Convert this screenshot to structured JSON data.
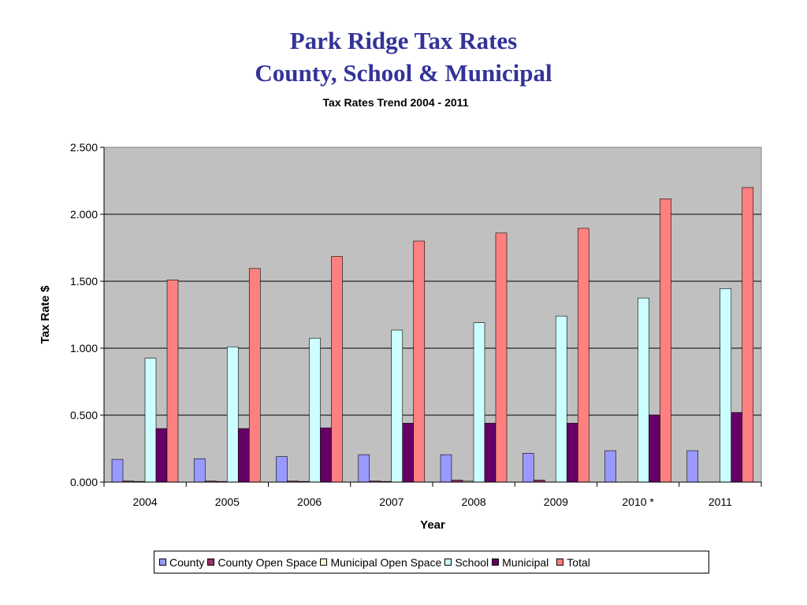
{
  "slide": {
    "title_line1": "Park Ridge Tax Rates",
    "title_line2": "County, School & Municipal"
  },
  "chart_data": {
    "type": "bar",
    "title": "Tax Rates Trend  2004 - 2011",
    "xlabel": "Year",
    "ylabel": "Tax Rate $",
    "ylim": [
      0,
      2.5
    ],
    "yticks": [
      "0.000",
      "0.500",
      "1.000",
      "1.500",
      "2.000",
      "2.500"
    ],
    "grid": true,
    "legend_position": "bottom",
    "categories": [
      "2004",
      "2005",
      "2006",
      "2007",
      "2008",
      "2009",
      "2010 *",
      "2011"
    ],
    "series": [
      {
        "name": "County",
        "color": "#9999FF",
        "values": [
          0.17,
          0.175,
          0.19,
          0.205,
          0.205,
          0.215,
          0.235,
          0.235
        ]
      },
      {
        "name": "County Open Space",
        "color": "#993366",
        "values": [
          0.008,
          0.008,
          0.008,
          0.008,
          0.015,
          0.015,
          0,
          0
        ]
      },
      {
        "name": "Municipal Open Space",
        "color": "#FFFFCC",
        "values": [
          0.005,
          0.005,
          0.005,
          0.005,
          0.007,
          0,
          0,
          0
        ]
      },
      {
        "name": "School",
        "color": "#CCFFFF",
        "values": [
          0.925,
          1.01,
          1.075,
          1.135,
          1.19,
          1.24,
          1.375,
          1.445
        ]
      },
      {
        "name": "Municipal",
        "color": "#660066",
        "values": [
          0.4,
          0.4,
          0.405,
          0.44,
          0.44,
          0.44,
          0.5,
          0.52
        ]
      },
      {
        "name": "Total",
        "color": "#FF8080",
        "values": [
          1.51,
          1.595,
          1.685,
          1.8,
          1.86,
          1.895,
          2.115,
          2.2
        ]
      }
    ]
  }
}
